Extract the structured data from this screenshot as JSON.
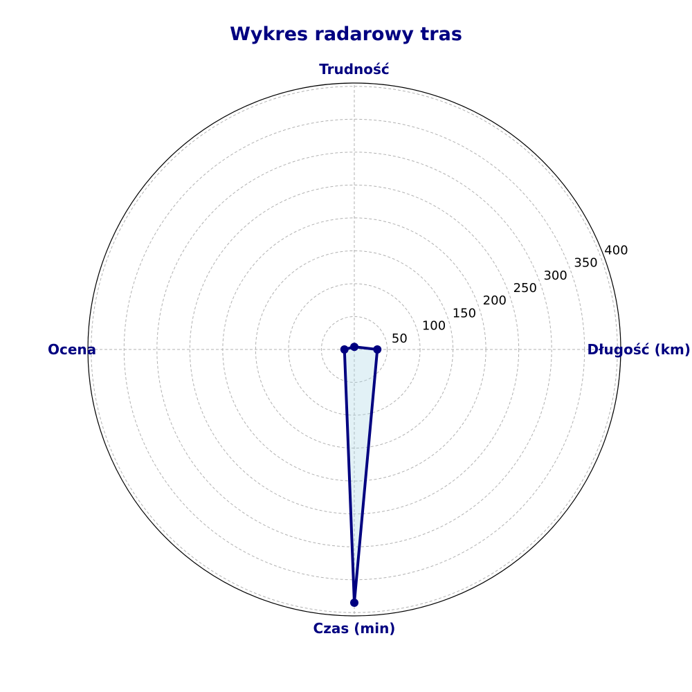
{
  "chart_data": {
    "type": "radar",
    "title": "Wykres radarowy tras",
    "axes": [
      "Długość (km)",
      "Trudność",
      "Ocena",
      "Czas (min)"
    ],
    "series": [
      {
        "values": [
          35,
          4,
          15,
          385
        ]
      }
    ],
    "rlim": [
      0,
      405
    ],
    "rticks": [
      50,
      100,
      150,
      200,
      250,
      300,
      350,
      400
    ],
    "grid": true,
    "colors": {
      "line": "#000080",
      "fill": "#add8e6",
      "label": "#000080"
    }
  }
}
